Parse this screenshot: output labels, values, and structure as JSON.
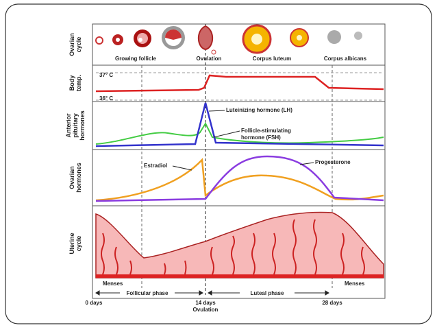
{
  "rows": [
    {
      "label": [
        "Ovarian",
        "cycle"
      ]
    },
    {
      "label": [
        "Body",
        "temp."
      ]
    },
    {
      "label": [
        "Anterior",
        "pituitary",
        "hormones"
      ]
    },
    {
      "label": [
        "Ovarian",
        "hormones"
      ]
    },
    {
      "label": [
        "Uterine",
        "cycle"
      ]
    }
  ],
  "ovarian": {
    "stages": [
      "Growing follicle",
      "Ovulation",
      "Corpus luteum",
      "Corpus albicans"
    ]
  },
  "temperature": {
    "high": "37° C",
    "low": "36° C"
  },
  "pituitary": {
    "lh": "Luteinizing hormone (LH)",
    "fsh": [
      "Follicle-stimulating",
      "hormone (FSH)"
    ]
  },
  "hormones": {
    "estradiol": "Estradiol",
    "progesterone": "Progesterone"
  },
  "uterine": {
    "menses": [
      "Menses",
      "Menses"
    ],
    "phases": [
      "Follicular phase",
      "Luteal phase"
    ]
  },
  "axis": {
    "start": "0 days",
    "middle": "14 days",
    "ovulation": "Ovulation",
    "end": "28 days"
  }
}
